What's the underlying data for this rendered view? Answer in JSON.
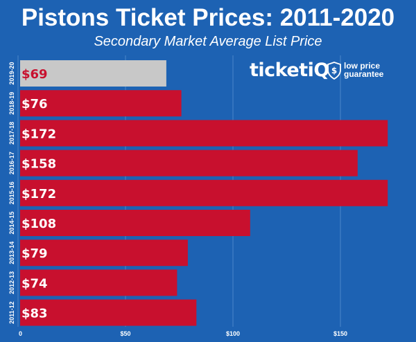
{
  "header": {
    "title": "Pistons Ticket Prices: 2011-2020",
    "subtitle": "Secondary Market Average List Price"
  },
  "logo": {
    "wordmark": "ticketiQ",
    "tagline_line1": "low price",
    "tagline_line2": "guarantee"
  },
  "colors": {
    "background": "#1d62b3",
    "bar": "#c8102e",
    "highlight_bar": "#c8c8c8",
    "bar_text": "#ffffff",
    "highlight_text": "#c8102e",
    "gridline": "#4a86c9"
  },
  "chart_data": {
    "type": "bar",
    "orientation": "horizontal",
    "categories": [
      "2019-20",
      "2018-19",
      "2017-18",
      "2016-17",
      "2015-16",
      "2014-15",
      "2013-14",
      "2012-13",
      "2011-12"
    ],
    "values": [
      69,
      76,
      172,
      158,
      172,
      108,
      79,
      74,
      83
    ],
    "value_labels": [
      "$69",
      "$76",
      "$172",
      "$158",
      "$172",
      "$108",
      "$79",
      "$74",
      "$83"
    ],
    "highlight_index": 0,
    "x_ticks": [
      0,
      50,
      100,
      150
    ],
    "x_tick_labels": [
      "0",
      "$50",
      "$100",
      "$150"
    ],
    "xlim": [
      0,
      180
    ],
    "grid": true
  }
}
